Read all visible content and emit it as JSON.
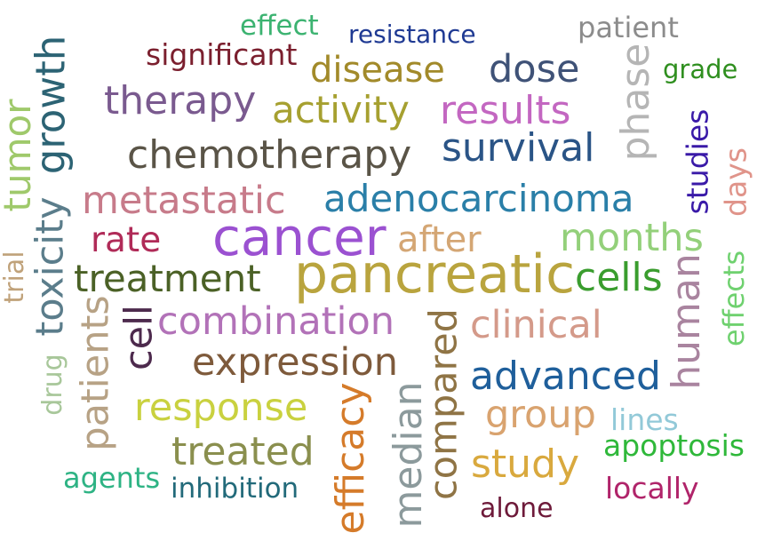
{
  "words": [
    {
      "id": "effect",
      "text": "effect",
      "color": "#3cb371"
    },
    {
      "id": "resistance",
      "text": "resistance",
      "color": "#1f3a93"
    },
    {
      "id": "patient",
      "text": "patient",
      "color": "#8c8c8c"
    },
    {
      "id": "significant",
      "text": "significant",
      "color": "#7b1f2e"
    },
    {
      "id": "disease",
      "text": "disease",
      "color": "#a28a2a"
    },
    {
      "id": "dose",
      "text": "dose",
      "color": "#3f5277"
    },
    {
      "id": "grade",
      "text": "grade",
      "color": "#2f8f1f"
    },
    {
      "id": "therapy",
      "text": "therapy",
      "color": "#7a5a8f"
    },
    {
      "id": "activity",
      "text": "activity",
      "color": "#a6a030"
    },
    {
      "id": "results",
      "text": "results",
      "color": "#c367c1"
    },
    {
      "id": "chemotherapy",
      "text": "chemotherapy",
      "color": "#5a5447"
    },
    {
      "id": "survival",
      "text": "survival",
      "color": "#2a5486"
    },
    {
      "id": "metastatic",
      "text": "metastatic",
      "color": "#c77b8a"
    },
    {
      "id": "adenocarcinoma",
      "text": "adenocarcinoma",
      "color": "#2a7fa8"
    },
    {
      "id": "rate",
      "text": "rate",
      "color": "#b02b58"
    },
    {
      "id": "cancer",
      "text": "cancer",
      "color": "#9b51d1"
    },
    {
      "id": "after",
      "text": "after",
      "color": "#d4a674"
    },
    {
      "id": "months",
      "text": "months",
      "color": "#93d07a"
    },
    {
      "id": "treatment",
      "text": "treatment",
      "color": "#4b6126"
    },
    {
      "id": "pancreatic",
      "text": "pancreatic",
      "color": "#b9a43e"
    },
    {
      "id": "cells",
      "text": "cells",
      "color": "#3a9d2e"
    },
    {
      "id": "combination",
      "text": "combination",
      "color": "#b272b8"
    },
    {
      "id": "clinical",
      "text": "clinical",
      "color": "#d49a8a"
    },
    {
      "id": "expression",
      "text": "expression",
      "color": "#7e5a3b"
    },
    {
      "id": "advanced",
      "text": "advanced",
      "color": "#1f5f9b"
    },
    {
      "id": "response",
      "text": "response",
      "color": "#c9d13f"
    },
    {
      "id": "group",
      "text": "group",
      "color": "#d9a36f"
    },
    {
      "id": "lines",
      "text": "lines",
      "color": "#92c9d8"
    },
    {
      "id": "treated",
      "text": "treated",
      "color": "#8a8f4e"
    },
    {
      "id": "study",
      "text": "study",
      "color": "#d9a93e"
    },
    {
      "id": "apoptosis",
      "text": "apoptosis",
      "color": "#2fb83a"
    },
    {
      "id": "agents",
      "text": "agents",
      "color": "#2eb384"
    },
    {
      "id": "inhibition",
      "text": "inhibition",
      "color": "#226a7a"
    },
    {
      "id": "locally",
      "text": "locally",
      "color": "#b0246a"
    },
    {
      "id": "alone",
      "text": "alone",
      "color": "#6e1a3a"
    },
    {
      "id": "tumor",
      "text": "tumor",
      "color": "#9fc96b"
    },
    {
      "id": "growth",
      "text": "growth",
      "color": "#2c6374"
    },
    {
      "id": "toxicity",
      "text": "toxicity",
      "color": "#5b7d8b"
    },
    {
      "id": "trial",
      "text": "trial",
      "color": "#c0a27a"
    },
    {
      "id": "patients",
      "text": "patients",
      "color": "#b7a285"
    },
    {
      "id": "drug",
      "text": "drug",
      "color": "#a8c79a"
    },
    {
      "id": "cell",
      "text": "cell",
      "color": "#4d2a4d"
    },
    {
      "id": "efficacy",
      "text": "efficacy",
      "color": "#d57b2a"
    },
    {
      "id": "median",
      "text": "median",
      "color": "#8c9a9c"
    },
    {
      "id": "compared",
      "text": "compared",
      "color": "#8f7445"
    },
    {
      "id": "phase",
      "text": "phase",
      "color": "#b5b5b5"
    },
    {
      "id": "studies",
      "text": "studies",
      "color": "#3a1aa8"
    },
    {
      "id": "days",
      "text": "days",
      "color": "#e0948a"
    },
    {
      "id": "human",
      "text": "human",
      "color": "#a9849f"
    },
    {
      "id": "effects",
      "text": "effects",
      "color": "#6fd16f"
    }
  ]
}
